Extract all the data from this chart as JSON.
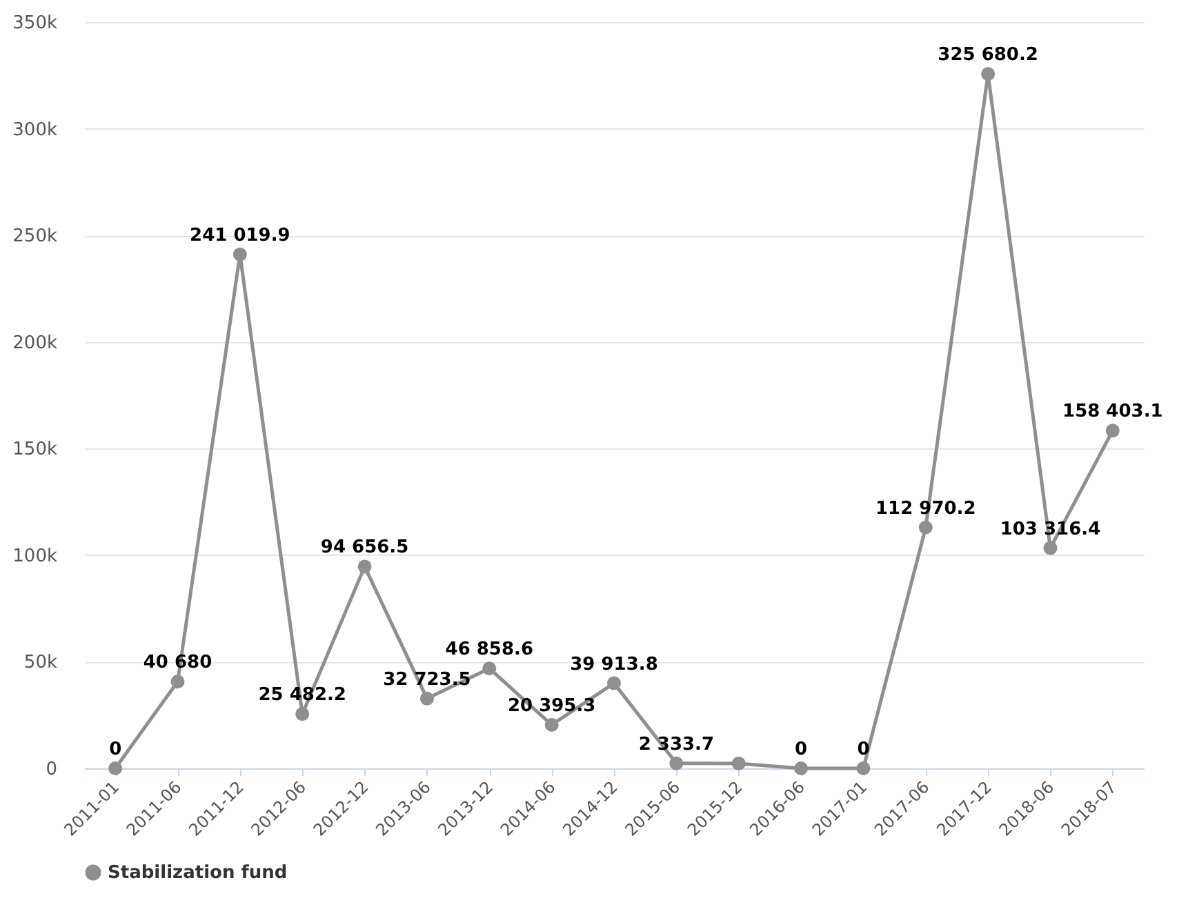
{
  "chart_data": {
    "type": "line",
    "categories": [
      "2011-01",
      "2011-06",
      "2011-12",
      "2012-06",
      "2012-12",
      "2013-06",
      "2013-12",
      "2014-06",
      "2014-12",
      "2015-06",
      "2015-12",
      "2016-06",
      "2017-01",
      "2017-06",
      "2017-12",
      "2018-06",
      "2018-07"
    ],
    "series": [
      {
        "name": "Stabilization fund",
        "color": "#8f8f8f",
        "values": [
          0,
          40680,
          241019.9,
          25482.2,
          94656.5,
          32723.5,
          46858.6,
          20395.3,
          39913.8,
          2333.7,
          2300,
          0,
          0,
          112970.2,
          325680.2,
          103316.4,
          158403.1
        ],
        "value_labels": [
          "0",
          "40 680",
          "241 019.9",
          "25 482.2",
          "94 656.5",
          "32 723.5",
          "46 858.6",
          "20 395.3",
          "39 913.8",
          "2 333.7",
          null,
          "0",
          "0",
          "112 970.2",
          "325 680.2",
          "103 316.4",
          "158 403.1"
        ]
      }
    ],
    "ylim": [
      0,
      350000
    ],
    "yticks": [
      {
        "value": 0,
        "label": "0"
      },
      {
        "value": 50000,
        "label": "50k"
      },
      {
        "value": 100000,
        "label": "100k"
      },
      {
        "value": 150000,
        "label": "150k"
      },
      {
        "value": 200000,
        "label": "200k"
      },
      {
        "value": 250000,
        "label": "250k"
      },
      {
        "value": 300000,
        "label": "300k"
      },
      {
        "value": 350000,
        "label": "350k"
      }
    ],
    "grid": "y",
    "legend": "bottom",
    "marker": "circle",
    "line_style": "solid"
  }
}
